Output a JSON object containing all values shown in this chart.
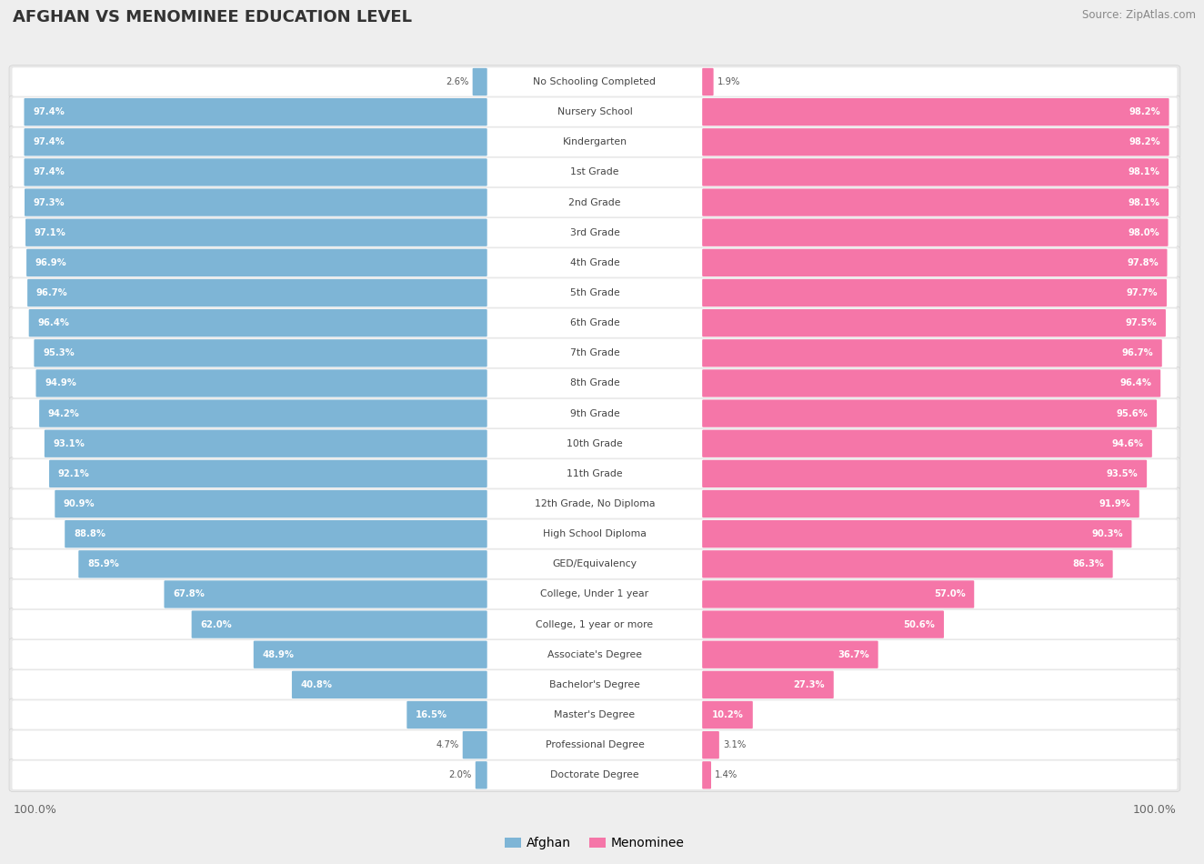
{
  "title": "AFGHAN VS MENOMINEE EDUCATION LEVEL",
  "source": "Source: ZipAtlas.com",
  "categories": [
    "No Schooling Completed",
    "Nursery School",
    "Kindergarten",
    "1st Grade",
    "2nd Grade",
    "3rd Grade",
    "4th Grade",
    "5th Grade",
    "6th Grade",
    "7th Grade",
    "8th Grade",
    "9th Grade",
    "10th Grade",
    "11th Grade",
    "12th Grade, No Diploma",
    "High School Diploma",
    "GED/Equivalency",
    "College, Under 1 year",
    "College, 1 year or more",
    "Associate's Degree",
    "Bachelor's Degree",
    "Master's Degree",
    "Professional Degree",
    "Doctorate Degree"
  ],
  "afghan": [
    2.6,
    97.4,
    97.4,
    97.4,
    97.3,
    97.1,
    96.9,
    96.7,
    96.4,
    95.3,
    94.9,
    94.2,
    93.1,
    92.1,
    90.9,
    88.8,
    85.9,
    67.8,
    62.0,
    48.9,
    40.8,
    16.5,
    4.7,
    2.0
  ],
  "menominee": [
    1.9,
    98.2,
    98.2,
    98.1,
    98.1,
    98.0,
    97.8,
    97.7,
    97.5,
    96.7,
    96.4,
    95.6,
    94.6,
    93.5,
    91.9,
    90.3,
    86.3,
    57.0,
    50.6,
    36.7,
    27.3,
    10.2,
    3.1,
    1.4
  ],
  "afghan_color": "#7eb5d6",
  "menominee_color": "#f576a8",
  "bg_color": "#eeeeee",
  "row_bg_color": "#e8e8e8",
  "bar_bg_color": "#ffffff",
  "title_color": "#333333",
  "label_color": "#444444",
  "value_color_inside": "#ffffff",
  "value_color_outside": "#555555",
  "legend_afghan": "Afghan",
  "legend_menominee": "Menominee",
  "axis_label_color": "#666666"
}
